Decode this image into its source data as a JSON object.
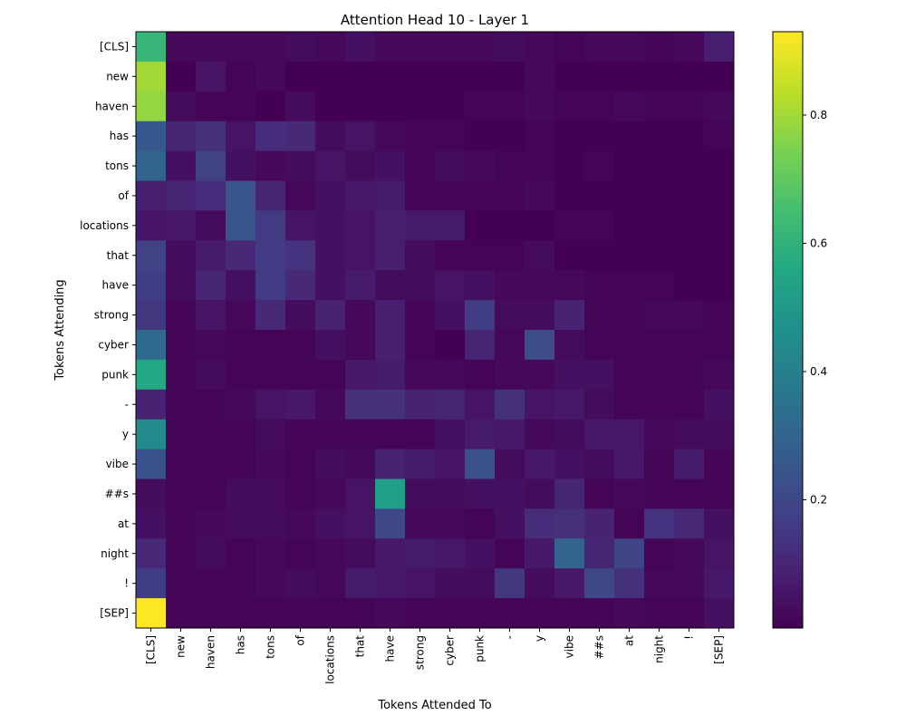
{
  "chart_data": {
    "type": "heatmap",
    "title": "Attention Head 10 - Layer 1",
    "xlabel": "Tokens Attended To",
    "ylabel": "Tokens Attending",
    "x_tokens": [
      "[CLS]",
      "new",
      "haven",
      "has",
      "tons",
      "of",
      "locations",
      "that",
      "have",
      "strong",
      "cyber",
      "punk",
      "-",
      "y",
      "vibe",
      "##s",
      "at",
      "night",
      "!",
      "[SEP]"
    ],
    "y_tokens": [
      "[CLS]",
      "new",
      "haven",
      "has",
      "tons",
      "of",
      "locations",
      "that",
      "have",
      "strong",
      "cyber",
      "punk",
      "-",
      "y",
      "vibe",
      "##s",
      "at",
      "night",
      "!",
      "[SEP]"
    ],
    "colormap": "viridis",
    "color_range": [
      0.0,
      0.93
    ],
    "colorbar_ticks": [
      0.2,
      0.4,
      0.6,
      0.8
    ],
    "colorbar_tick_labels": [
      "0.2",
      "0.4",
      "0.6",
      "0.8"
    ],
    "values": [
      [
        0.62,
        0.02,
        0.02,
        0.02,
        0.02,
        0.03,
        0.02,
        0.04,
        0.02,
        0.02,
        0.02,
        0.02,
        0.03,
        0.02,
        0.01,
        0.02,
        0.02,
        0.01,
        0.02,
        0.08
      ],
      [
        0.8,
        0.0,
        0.05,
        0.01,
        0.02,
        0.0,
        0.0,
        0.0,
        0.0,
        0.0,
        0.0,
        0.0,
        0.0,
        0.02,
        0.0,
        0.0,
        0.0,
        0.0,
        0.0,
        0.0
      ],
      [
        0.78,
        0.03,
        0.01,
        0.01,
        0.0,
        0.03,
        0.0,
        0.0,
        0.0,
        0.0,
        0.0,
        0.01,
        0.01,
        0.02,
        0.01,
        0.01,
        0.02,
        0.01,
        0.01,
        0.02
      ],
      [
        0.26,
        0.1,
        0.13,
        0.05,
        0.12,
        0.11,
        0.03,
        0.05,
        0.02,
        0.01,
        0.01,
        0.0,
        0.0,
        0.01,
        0.0,
        0.0,
        0.0,
        0.0,
        0.0,
        0.01
      ],
      [
        0.3,
        0.04,
        0.18,
        0.04,
        0.02,
        0.03,
        0.05,
        0.03,
        0.04,
        0.01,
        0.03,
        0.02,
        0.01,
        0.01,
        0.0,
        0.01,
        0.0,
        0.0,
        0.0,
        0.0
      ],
      [
        0.08,
        0.1,
        0.12,
        0.25,
        0.1,
        0.02,
        0.04,
        0.06,
        0.07,
        0.01,
        0.01,
        0.01,
        0.01,
        0.02,
        0.0,
        0.0,
        0.0,
        0.0,
        0.0,
        0.0
      ],
      [
        0.05,
        0.06,
        0.03,
        0.25,
        0.16,
        0.05,
        0.04,
        0.05,
        0.08,
        0.07,
        0.07,
        0.0,
        0.0,
        0.0,
        0.01,
        0.01,
        0.0,
        0.0,
        0.0,
        0.0
      ],
      [
        0.18,
        0.03,
        0.07,
        0.11,
        0.16,
        0.14,
        0.04,
        0.05,
        0.08,
        0.03,
        0.01,
        0.01,
        0.01,
        0.03,
        0.0,
        0.0,
        0.0,
        0.0,
        0.0,
        0.0
      ],
      [
        0.17,
        0.03,
        0.1,
        0.04,
        0.16,
        0.11,
        0.04,
        0.07,
        0.03,
        0.03,
        0.05,
        0.04,
        0.02,
        0.02,
        0.02,
        0.01,
        0.01,
        0.01,
        0.0,
        0.0
      ],
      [
        0.15,
        0.01,
        0.05,
        0.02,
        0.11,
        0.03,
        0.09,
        0.02,
        0.08,
        0.01,
        0.04,
        0.17,
        0.03,
        0.03,
        0.09,
        0.01,
        0.01,
        0.02,
        0.02,
        0.01
      ],
      [
        0.32,
        0.01,
        0.02,
        0.01,
        0.01,
        0.01,
        0.04,
        0.02,
        0.08,
        0.01,
        0.0,
        0.1,
        0.02,
        0.22,
        0.03,
        0.01,
        0.01,
        0.01,
        0.01,
        0.01
      ],
      [
        0.56,
        0.01,
        0.03,
        0.01,
        0.01,
        0.01,
        0.01,
        0.06,
        0.07,
        0.02,
        0.02,
        0.01,
        0.02,
        0.02,
        0.04,
        0.04,
        0.01,
        0.01,
        0.01,
        0.02
      ],
      [
        0.09,
        0.01,
        0.01,
        0.02,
        0.05,
        0.06,
        0.02,
        0.13,
        0.13,
        0.09,
        0.1,
        0.05,
        0.13,
        0.05,
        0.06,
        0.03,
        0.01,
        0.01,
        0.01,
        0.04
      ],
      [
        0.44,
        0.01,
        0.01,
        0.01,
        0.03,
        0.01,
        0.01,
        0.01,
        0.01,
        0.01,
        0.04,
        0.07,
        0.06,
        0.02,
        0.03,
        0.06,
        0.06,
        0.02,
        0.03,
        0.03
      ],
      [
        0.24,
        0.01,
        0.01,
        0.01,
        0.02,
        0.01,
        0.03,
        0.02,
        0.09,
        0.07,
        0.05,
        0.23,
        0.03,
        0.06,
        0.04,
        0.03,
        0.06,
        0.01,
        0.07,
        0.01
      ],
      [
        0.03,
        0.01,
        0.01,
        0.03,
        0.03,
        0.01,
        0.02,
        0.05,
        0.52,
        0.03,
        0.03,
        0.04,
        0.04,
        0.03,
        0.1,
        0.01,
        0.02,
        0.01,
        0.01,
        0.01
      ],
      [
        0.04,
        0.01,
        0.02,
        0.03,
        0.03,
        0.02,
        0.04,
        0.05,
        0.2,
        0.02,
        0.02,
        0.01,
        0.04,
        0.12,
        0.13,
        0.09,
        0.01,
        0.14,
        0.11,
        0.04
      ],
      [
        0.11,
        0.01,
        0.03,
        0.01,
        0.02,
        0.01,
        0.02,
        0.03,
        0.06,
        0.07,
        0.06,
        0.04,
        0.01,
        0.06,
        0.3,
        0.1,
        0.19,
        0.01,
        0.02,
        0.05
      ],
      [
        0.17,
        0.01,
        0.01,
        0.01,
        0.02,
        0.03,
        0.02,
        0.07,
        0.06,
        0.05,
        0.03,
        0.03,
        0.15,
        0.03,
        0.06,
        0.2,
        0.13,
        0.02,
        0.02,
        0.06
      ],
      [
        0.93,
        0.01,
        0.01,
        0.01,
        0.01,
        0.01,
        0.01,
        0.01,
        0.02,
        0.01,
        0.01,
        0.01,
        0.01,
        0.01,
        0.01,
        0.01,
        0.02,
        0.01,
        0.01,
        0.04
      ]
    ]
  }
}
